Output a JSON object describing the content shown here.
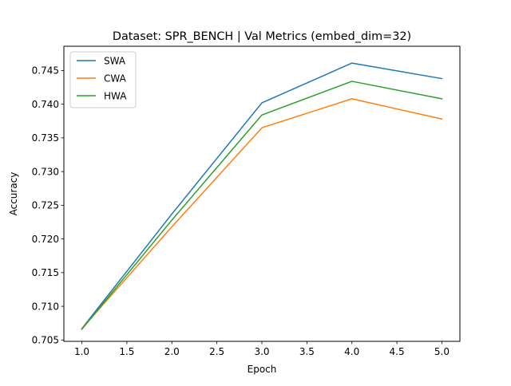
{
  "chart_data": {
    "type": "line",
    "title": "Dataset: SPR_BENCH | Val Metrics (embed_dim=32)",
    "xlabel": "Epoch",
    "ylabel": "Accuracy",
    "x": [
      1,
      2,
      3,
      4,
      5
    ],
    "xlim": [
      0.8,
      5.2
    ],
    "ylim": [
      0.7048,
      0.7486
    ],
    "xticks": [
      1.0,
      1.5,
      2.0,
      2.5,
      3.0,
      3.5,
      4.0,
      4.5,
      5.0
    ],
    "xtick_labels": [
      "1.0",
      "1.5",
      "2.0",
      "2.5",
      "3.0",
      "3.5",
      "4.0",
      "4.5",
      "5.0"
    ],
    "yticks": [
      0.705,
      0.71,
      0.715,
      0.72,
      0.725,
      0.73,
      0.735,
      0.74,
      0.745
    ],
    "ytick_labels": [
      "0.705",
      "0.710",
      "0.715",
      "0.720",
      "0.725",
      "0.730",
      "0.735",
      "0.740",
      "0.745"
    ],
    "grid": false,
    "legend_position": "top-left",
    "series": [
      {
        "name": "SWA",
        "color": "#1f77b4",
        "values": [
          0.7067,
          0.7237,
          0.7402,
          0.7461,
          0.7438
        ]
      },
      {
        "name": "CWA",
        "color": "#ff7f0e",
        "values": [
          0.7067,
          0.7218,
          0.7365,
          0.7408,
          0.7378
        ]
      },
      {
        "name": "HWA",
        "color": "#2ca02c",
        "values": [
          0.7066,
          0.7228,
          0.7384,
          0.7434,
          0.7408
        ]
      }
    ]
  }
}
